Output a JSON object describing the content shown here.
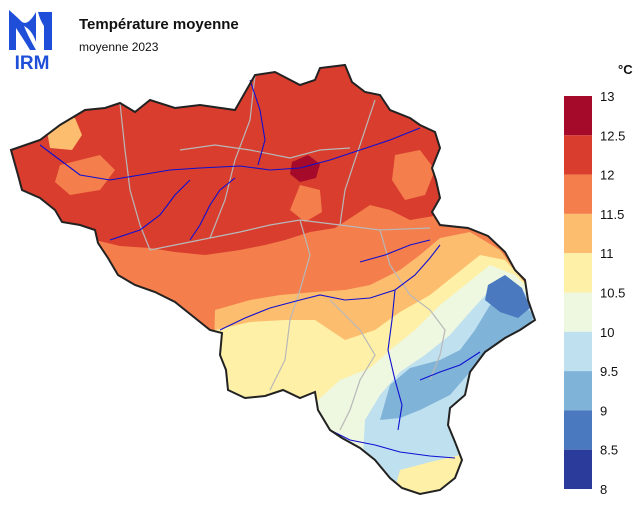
{
  "header": {
    "logo_text": "IRM",
    "title": "Température moyenne",
    "subtitle": "moyenne 2023"
  },
  "legend": {
    "unit": "°C",
    "bins": [
      {
        "from": 8,
        "to": 8.5,
        "color": "#2b3b9b"
      },
      {
        "from": 8.5,
        "to": 9,
        "color": "#4a79bf"
      },
      {
        "from": 9,
        "to": 9.5,
        "color": "#7fb3d8"
      },
      {
        "from": 9.5,
        "to": 10,
        "color": "#bfe0ef"
      },
      {
        "from": 10,
        "to": 10.5,
        "color": "#eef7e0"
      },
      {
        "from": 10.5,
        "to": 11,
        "color": "#fef0a6"
      },
      {
        "from": 11,
        "to": 11.5,
        "color": "#fdbd6f"
      },
      {
        "from": 11.5,
        "to": 12,
        "color": "#f47e4c"
      },
      {
        "from": 12,
        "to": 12.5,
        "color": "#d93d2e"
      },
      {
        "from": 12.5,
        "to": 13,
        "color": "#a50a2a"
      }
    ],
    "ticks": [
      "13",
      "12.5",
      "12",
      "11.5",
      "11",
      "10.5",
      "10",
      "9.5",
      "9",
      "8.5",
      "8"
    ]
  },
  "colors": {
    "border": "#222222",
    "provinces": "#b8b8b8",
    "rivers": "#1010d0",
    "logo": "#1f4fd8"
  }
}
